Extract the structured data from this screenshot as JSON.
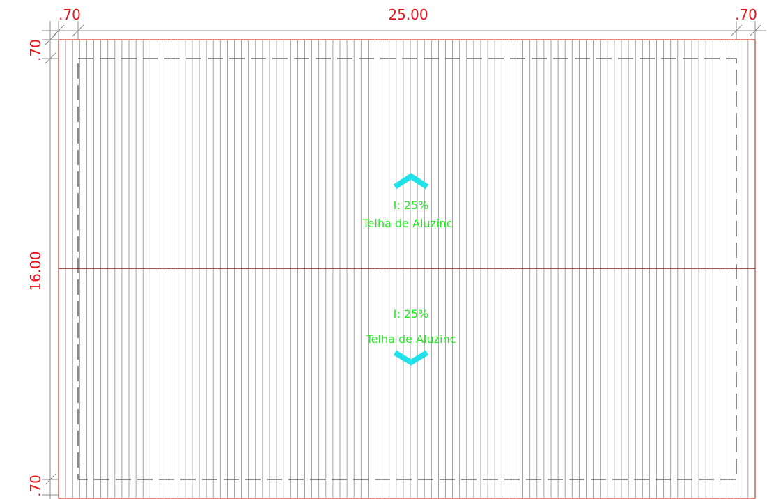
{
  "dimensions": {
    "top_left_overhang": ".70",
    "top_width": "25.00",
    "top_right_overhang": ".70",
    "left_top_overhang": ".70",
    "left_height": "16.00",
    "left_bottom_overhang": ".70"
  },
  "roof_planes": {
    "upper": {
      "slope_label": "I: 25%",
      "material_label": "Telha de Aluzinc",
      "arrow_direction": "up"
    },
    "lower": {
      "slope_label": "I: 25%",
      "material_label": "Telha de Aluzinc",
      "arrow_direction": "down"
    }
  },
  "colors": {
    "dimension": "#e8131b",
    "roof_outline": "#c0392b",
    "ridge": "#8b1a1a",
    "sheet_lines": "#8c8c8c",
    "wall_dashed": "#4a4a4a",
    "text": "#1ef01e",
    "arrow": "#22e0e8"
  }
}
